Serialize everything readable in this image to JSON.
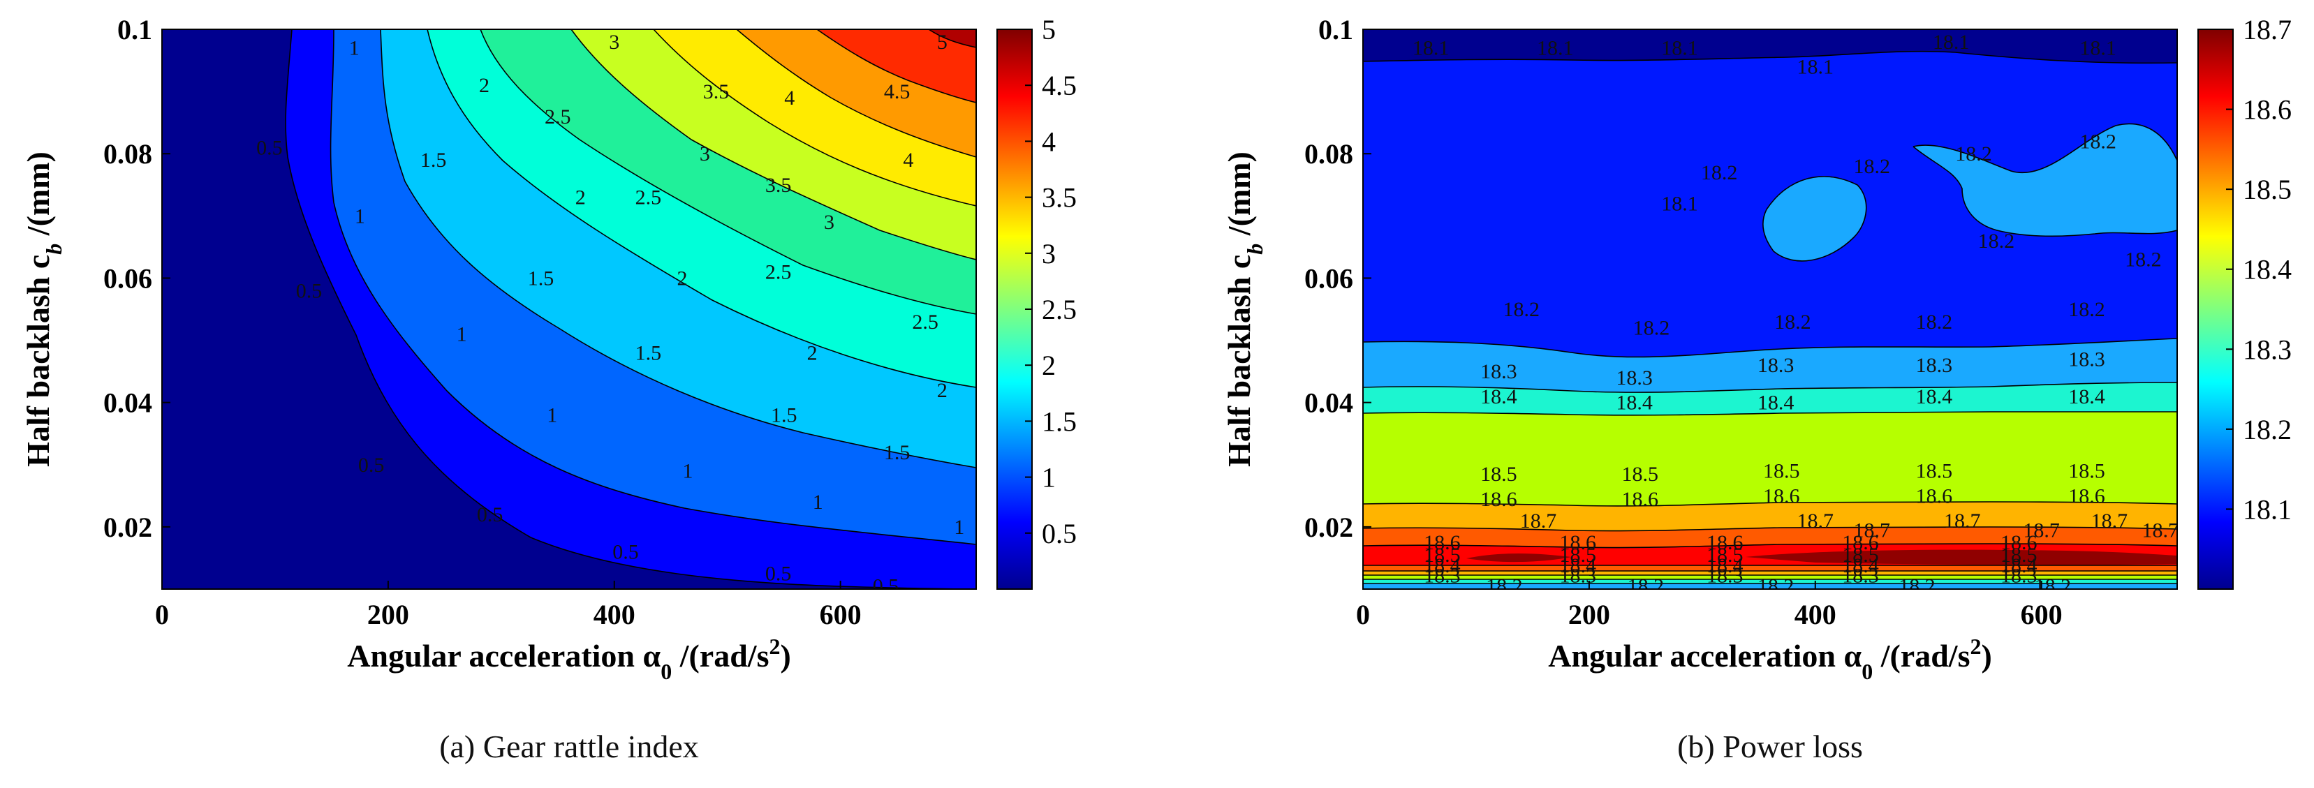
{
  "chart_data": [
    {
      "type": "contour",
      "caption": "(a) Gear rattle index",
      "title": "",
      "xlabel": "Angular acceleration α",
      "xlabel_sub": "0",
      "xlabel_unit": " /(rad/s",
      "xlabel_sup": "2",
      "xlabel_end": ")",
      "ylabel": "Half backlash c",
      "ylabel_sub": "b",
      "ylabel_unit": " /(mm)",
      "xlim": [
        0,
        720
      ],
      "ylim": [
        0.01,
        0.1
      ],
      "xticks": [
        0,
        200,
        400,
        600
      ],
      "yticks": [
        0.02,
        0.04,
        0.06,
        0.08,
        0.1
      ],
      "ytick_labels": [
        "0.02",
        "0.04",
        "0.06",
        "0.08",
        "0.1"
      ],
      "colorbar": {
        "min": 0,
        "max": 5,
        "ticks": [
          0.5,
          1,
          1.5,
          2,
          2.5,
          3,
          3.5,
          4,
          4.5,
          5
        ],
        "labels": [
          "0.5",
          "1",
          "1.5",
          "2",
          "2.5",
          "3",
          "3.5",
          "4",
          "4.5",
          "5"
        ]
      },
      "contour_levels": [
        0.5,
        1,
        1.5,
        2,
        2.5,
        3,
        3.5,
        4,
        4.5,
        5
      ],
      "contour_labels": [
        {
          "text": "0.5",
          "x": 95,
          "y": 0.081
        },
        {
          "text": "0.5",
          "x": 130,
          "y": 0.058
        },
        {
          "text": "0.5",
          "x": 185,
          "y": 0.03
        },
        {
          "text": "0.5",
          "x": 290,
          "y": 0.022
        },
        {
          "text": "0.5",
          "x": 410,
          "y": 0.016
        },
        {
          "text": "0.5",
          "x": 545,
          "y": 0.0125
        },
        {
          "text": "0.5",
          "x": 640,
          "y": 0.0105
        },
        {
          "text": "1",
          "x": 170,
          "y": 0.097
        },
        {
          "text": "1",
          "x": 175,
          "y": 0.07
        },
        {
          "text": "1",
          "x": 265,
          "y": 0.051
        },
        {
          "text": "1",
          "x": 345,
          "y": 0.038
        },
        {
          "text": "1",
          "x": 465,
          "y": 0.029
        },
        {
          "text": "1",
          "x": 580,
          "y": 0.024
        },
        {
          "text": "1",
          "x": 705,
          "y": 0.02
        },
        {
          "text": "1.5",
          "x": 240,
          "y": 0.079
        },
        {
          "text": "1.5",
          "x": 335,
          "y": 0.06
        },
        {
          "text": "1.5",
          "x": 430,
          "y": 0.048
        },
        {
          "text": "1.5",
          "x": 550,
          "y": 0.038
        },
        {
          "text": "1.5",
          "x": 650,
          "y": 0.032
        },
        {
          "text": "2",
          "x": 285,
          "y": 0.091
        },
        {
          "text": "2",
          "x": 370,
          "y": 0.073
        },
        {
          "text": "2",
          "x": 460,
          "y": 0.06
        },
        {
          "text": "2",
          "x": 575,
          "y": 0.048
        },
        {
          "text": "2",
          "x": 690,
          "y": 0.042
        },
        {
          "text": "2.5",
          "x": 350,
          "y": 0.086
        },
        {
          "text": "2.5",
          "x": 430,
          "y": 0.073
        },
        {
          "text": "2.5",
          "x": 545,
          "y": 0.061
        },
        {
          "text": "2.5",
          "x": 675,
          "y": 0.053
        },
        {
          "text": "3",
          "x": 400,
          "y": 0.098
        },
        {
          "text": "3",
          "x": 480,
          "y": 0.08
        },
        {
          "text": "3",
          "x": 590,
          "y": 0.069
        },
        {
          "text": "3.5",
          "x": 490,
          "y": 0.09
        },
        {
          "text": "3.5",
          "x": 545,
          "y": 0.075
        },
        {
          "text": "4",
          "x": 555,
          "y": 0.089
        },
        {
          "text": "4",
          "x": 660,
          "y": 0.079
        },
        {
          "text": "4.5",
          "x": 650,
          "y": 0.09
        },
        {
          "text": "5",
          "x": 690,
          "y": 0.098
        }
      ]
    },
    {
      "type": "contour",
      "caption": "(b) Power loss",
      "title": "",
      "xlabel": "Angular acceleration α",
      "xlabel_sub": "0",
      "xlabel_unit": " /(rad/s",
      "xlabel_sup": "2",
      "xlabel_end": ")",
      "ylabel": "Half backlash c",
      "ylabel_sub": "b",
      "ylabel_unit": " /(mm)",
      "xlim": [
        0,
        720
      ],
      "ylim": [
        0.01,
        0.1
      ],
      "xticks": [
        0,
        200,
        400,
        600
      ],
      "yticks": [
        0.02,
        0.04,
        0.06,
        0.08,
        0.1
      ],
      "ytick_labels": [
        "0.02",
        "0.04",
        "0.06",
        "0.08",
        "0.1"
      ],
      "colorbar": {
        "min": 18.0,
        "max": 18.7,
        "ticks": [
          18.1,
          18.2,
          18.3,
          18.4,
          18.5,
          18.6,
          18.7
        ],
        "labels": [
          "18.1",
          "18.2",
          "18.3",
          "18.4",
          "18.5",
          "18.6",
          "18.7"
        ]
      },
      "contour_levels": [
        18.1,
        18.2,
        18.3,
        18.4,
        18.5,
        18.6,
        18.7
      ],
      "contour_labels": [
        {
          "text": "18.1",
          "x": 60,
          "y": 0.097
        },
        {
          "text": "18.1",
          "x": 170,
          "y": 0.097
        },
        {
          "text": "18.1",
          "x": 280,
          "y": 0.097
        },
        {
          "text": "18.1",
          "x": 400,
          "y": 0.094
        },
        {
          "text": "18.1",
          "x": 520,
          "y": 0.098
        },
        {
          "text": "18.1",
          "x": 650,
          "y": 0.097
        },
        {
          "text": "18.1",
          "x": 280,
          "y": 0.072
        },
        {
          "text": "18.2",
          "x": 315,
          "y": 0.077
        },
        {
          "text": "18.2",
          "x": 450,
          "y": 0.078
        },
        {
          "text": "18.2",
          "x": 540,
          "y": 0.08
        },
        {
          "text": "18.2",
          "x": 650,
          "y": 0.082
        },
        {
          "text": "18.2",
          "x": 560,
          "y": 0.066
        },
        {
          "text": "18.2",
          "x": 690,
          "y": 0.063
        },
        {
          "text": "18.2",
          "x": 140,
          "y": 0.055
        },
        {
          "text": "18.2",
          "x": 255,
          "y": 0.052
        },
        {
          "text": "18.2",
          "x": 380,
          "y": 0.053
        },
        {
          "text": "18.2",
          "x": 505,
          "y": 0.053
        },
        {
          "text": "18.2",
          "x": 640,
          "y": 0.055
        },
        {
          "text": "18.3",
          "x": 120,
          "y": 0.045
        },
        {
          "text": "18.3",
          "x": 240,
          "y": 0.044
        },
        {
          "text": "18.3",
          "x": 365,
          "y": 0.046
        },
        {
          "text": "18.3",
          "x": 505,
          "y": 0.046
        },
        {
          "text": "18.3",
          "x": 640,
          "y": 0.047
        },
        {
          "text": "18.4",
          "x": 120,
          "y": 0.041
        },
        {
          "text": "18.4",
          "x": 240,
          "y": 0.04
        },
        {
          "text": "18.4",
          "x": 365,
          "y": 0.04
        },
        {
          "text": "18.4",
          "x": 505,
          "y": 0.041
        },
        {
          "text": "18.4",
          "x": 640,
          "y": 0.041
        },
        {
          "text": "18.5",
          "x": 120,
          "y": 0.0285
        },
        {
          "text": "18.5",
          "x": 245,
          "y": 0.0285
        },
        {
          "text": "18.5",
          "x": 370,
          "y": 0.029
        },
        {
          "text": "18.5",
          "x": 505,
          "y": 0.029
        },
        {
          "text": "18.5",
          "x": 640,
          "y": 0.029
        },
        {
          "text": "18.6",
          "x": 120,
          "y": 0.0245
        },
        {
          "text": "18.6",
          "x": 245,
          "y": 0.0245
        },
        {
          "text": "18.6",
          "x": 370,
          "y": 0.025
        },
        {
          "text": "18.6",
          "x": 505,
          "y": 0.025
        },
        {
          "text": "18.6",
          "x": 640,
          "y": 0.025
        },
        {
          "text": "18.7",
          "x": 155,
          "y": 0.021
        },
        {
          "text": "18.7",
          "x": 400,
          "y": 0.021
        },
        {
          "text": "18.7",
          "x": 450,
          "y": 0.0195
        },
        {
          "text": "18.7",
          "x": 530,
          "y": 0.021
        },
        {
          "text": "18.7",
          "x": 600,
          "y": 0.0195
        },
        {
          "text": "18.7",
          "x": 660,
          "y": 0.021
        },
        {
          "text": "18.7",
          "x": 705,
          "y": 0.0195
        },
        {
          "text": "18.6",
          "x": 70,
          "y": 0.0175
        },
        {
          "text": "18.6",
          "x": 190,
          "y": 0.0175
        },
        {
          "text": "18.6",
          "x": 320,
          "y": 0.0175
        },
        {
          "text": "18.6",
          "x": 440,
          "y": 0.0175
        },
        {
          "text": "18.6",
          "x": 580,
          "y": 0.0175
        },
        {
          "text": "18.5",
          "x": 70,
          "y": 0.0155
        },
        {
          "text": "18.5",
          "x": 190,
          "y": 0.0155
        },
        {
          "text": "18.5",
          "x": 320,
          "y": 0.0155
        },
        {
          "text": "18.5",
          "x": 440,
          "y": 0.0155
        },
        {
          "text": "18.5",
          "x": 580,
          "y": 0.0155
        },
        {
          "text": "18.4",
          "x": 70,
          "y": 0.0138
        },
        {
          "text": "18.4",
          "x": 190,
          "y": 0.0138
        },
        {
          "text": "18.4",
          "x": 320,
          "y": 0.0138
        },
        {
          "text": "18.4",
          "x": 440,
          "y": 0.0138
        },
        {
          "text": "18.4",
          "x": 580,
          "y": 0.0138
        },
        {
          "text": "18.3",
          "x": 70,
          "y": 0.0122
        },
        {
          "text": "18.3",
          "x": 190,
          "y": 0.0122
        },
        {
          "text": "18.3",
          "x": 320,
          "y": 0.0122
        },
        {
          "text": "18.3",
          "x": 440,
          "y": 0.0122
        },
        {
          "text": "18.3",
          "x": 580,
          "y": 0.0122
        },
        {
          "text": "18.2",
          "x": 125,
          "y": 0.0105
        },
        {
          "text": "18.2",
          "x": 250,
          "y": 0.0105
        },
        {
          "text": "18.2",
          "x": 365,
          "y": 0.0105
        },
        {
          "text": "18.2",
          "x": 490,
          "y": 0.0105
        },
        {
          "text": "18.2",
          "x": 610,
          "y": 0.0105
        }
      ]
    }
  ]
}
